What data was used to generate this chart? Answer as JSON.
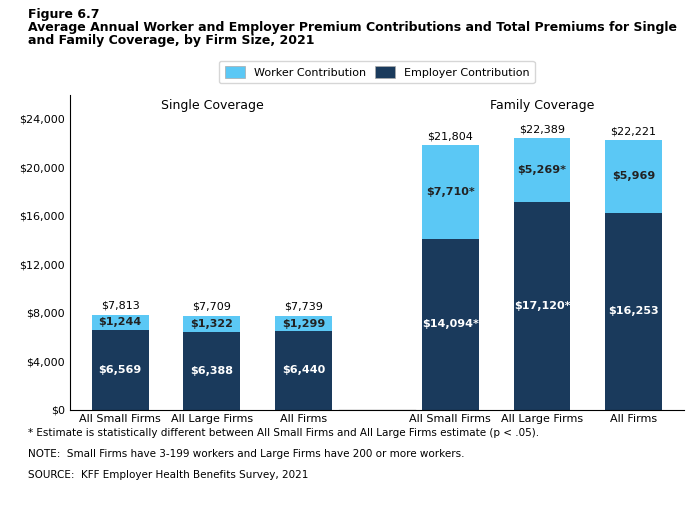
{
  "figure_label": "Figure 6.7",
  "title_line1": "Average Annual Worker and Employer Premium Contributions and Total Premiums for Single",
  "title_line2": "and Family Coverage, by Firm Size, 2021",
  "single_coverage": {
    "label": "Single Coverage",
    "categories": [
      "All Small Firms",
      "All Large Firms",
      "All Firms"
    ],
    "employer": [
      6569,
      6388,
      6440
    ],
    "worker": [
      1244,
      1322,
      1299
    ],
    "total": [
      7813,
      7709,
      7739
    ],
    "employer_labels": [
      "$6,569",
      "$6,388",
      "$6,440"
    ],
    "worker_labels": [
      "$1,244",
      "$1,322",
      "$1,299"
    ],
    "total_labels": [
      "$7,813",
      "$7,709",
      "$7,739"
    ]
  },
  "family_coverage": {
    "label": "Family Coverage",
    "categories": [
      "All Small Firms",
      "All Large Firms",
      "All Firms"
    ],
    "employer": [
      14094,
      17120,
      16253
    ],
    "worker": [
      7710,
      5269,
      5969
    ],
    "total": [
      21804,
      22389,
      22221
    ],
    "employer_labels": [
      "$14,094*",
      "$17,120*",
      "$16,253"
    ],
    "worker_labels": [
      "$7,710*",
      "$5,269*",
      "$5,969"
    ],
    "total_labels": [
      "$21,804",
      "$22,389",
      "$22,221"
    ]
  },
  "colors": {
    "employer": "#1a3a5c",
    "worker": "#5bc8f5"
  },
  "ylim": [
    0,
    26000
  ],
  "yticks": [
    0,
    4000,
    8000,
    12000,
    16000,
    20000,
    24000
  ],
  "ytick_labels": [
    "$0",
    "$4,000",
    "$8,000",
    "$12,000",
    "$16,000",
    "$20,000",
    "$24,000"
  ],
  "legend_labels": [
    "Worker Contribution",
    "Employer Contribution"
  ],
  "footnote1": "* Estimate is statistically different between All Small Firms and All Large Firms estimate (p < .05).",
  "footnote2": "NOTE:  Small Firms have 3-199 workers and Large Firms have 200 or more workers.",
  "footnote3": "SOURCE:  KFF Employer Health Benefits Survey, 2021"
}
